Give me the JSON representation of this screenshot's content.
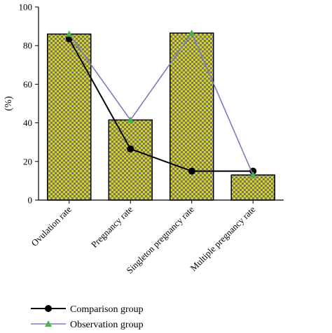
{
  "chart_data": {
    "type": "bar",
    "categories": [
      "Ovulation rate",
      "Pregnancy rate",
      "Singleton pregnancy rate",
      "Multiple pregnancy rate"
    ],
    "bar_values": [
      86,
      41.5,
      86.5,
      13
    ],
    "bar_fill": "#d4d42c",
    "bar_pattern_color": "#7c7c50",
    "series": [
      {
        "name": "Comparison group",
        "type": "line",
        "values": [
          83.5,
          26.5,
          15,
          15
        ],
        "color": "#000000",
        "marker": "circle"
      },
      {
        "name": "Observation group",
        "type": "line",
        "values": [
          86,
          41.5,
          86.5,
          13
        ],
        "color": "#7b7bbd",
        "marker": "triangle",
        "marker_color": "#4caf50"
      }
    ],
    "ylabel": "(%)",
    "ylim": [
      0,
      100
    ],
    "yticks": [
      "0",
      "20",
      "40",
      "60",
      "80",
      "100"
    ],
    "grid": false,
    "legend_position": "bottom-left"
  }
}
